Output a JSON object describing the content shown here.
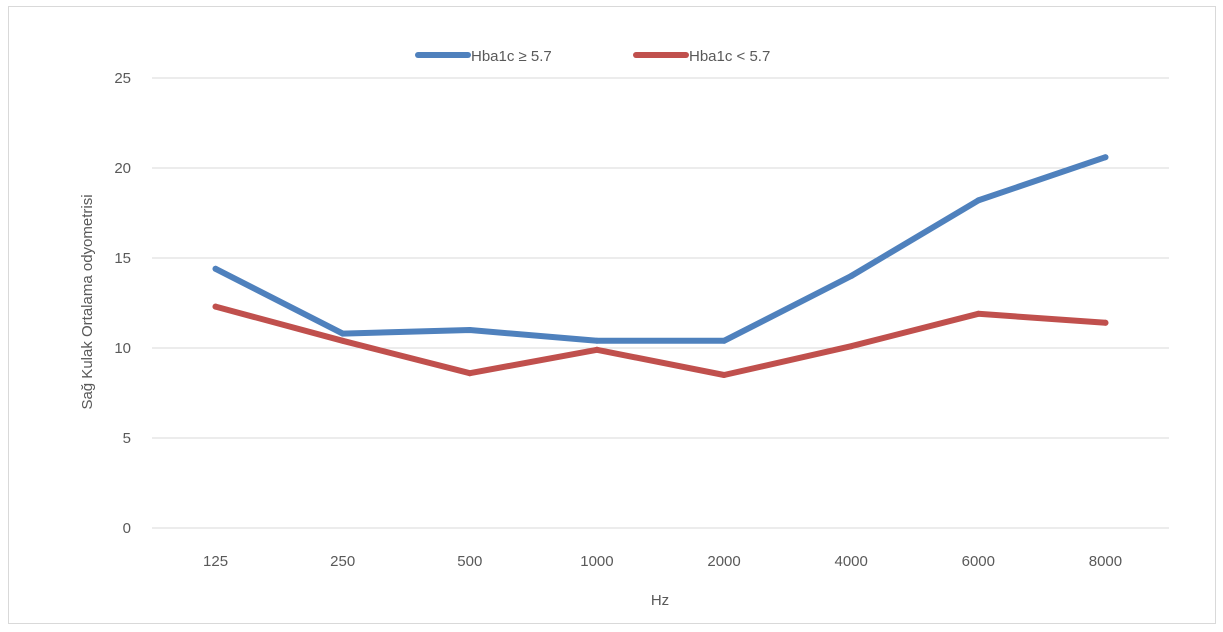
{
  "chart_data": {
    "type": "line",
    "title": "",
    "xlabel": "Hz",
    "ylabel": "Sağ Kulak Ortalama odyometrisi",
    "categories": [
      "125",
      "250",
      "500",
      "1000",
      "2000",
      "4000",
      "6000",
      "8000"
    ],
    "yticks": [
      "0",
      "5",
      "10",
      "15",
      "20",
      "25"
    ],
    "ylim": [
      0,
      25
    ],
    "grid": true,
    "legend_position": "top-center",
    "series": [
      {
        "name": "Hba1c ≥ 5.7",
        "color": "#4f81bd",
        "values": [
          14.4,
          10.8,
          11.0,
          10.4,
          10.4,
          14.0,
          18.2,
          20.6
        ]
      },
      {
        "name": "Hba1c < 5.7",
        "color": "#c0504d",
        "values": [
          12.3,
          10.4,
          8.6,
          9.9,
          8.5,
          10.1,
          11.9,
          11.4
        ]
      }
    ]
  }
}
